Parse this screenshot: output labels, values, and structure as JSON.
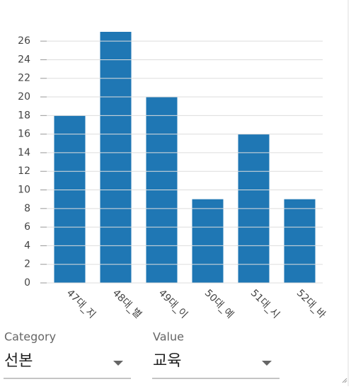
{
  "chart_data": {
    "type": "bar",
    "categories": [
      "47대_지",
      "48대_별",
      "49대_이",
      "50대_예",
      "51대_시",
      "52대_바"
    ],
    "values": [
      18,
      27,
      20,
      9,
      16,
      9
    ],
    "color": "#1f77b4",
    "ylim": [
      0,
      27
    ],
    "yticks": [
      0,
      2,
      4,
      6,
      8,
      10,
      12,
      14,
      16,
      18,
      20,
      22,
      24,
      26
    ],
    "grid": true
  },
  "controls": {
    "category": {
      "label": "Category",
      "value": "선본"
    },
    "value": {
      "label": "Value",
      "value": "교육"
    }
  }
}
